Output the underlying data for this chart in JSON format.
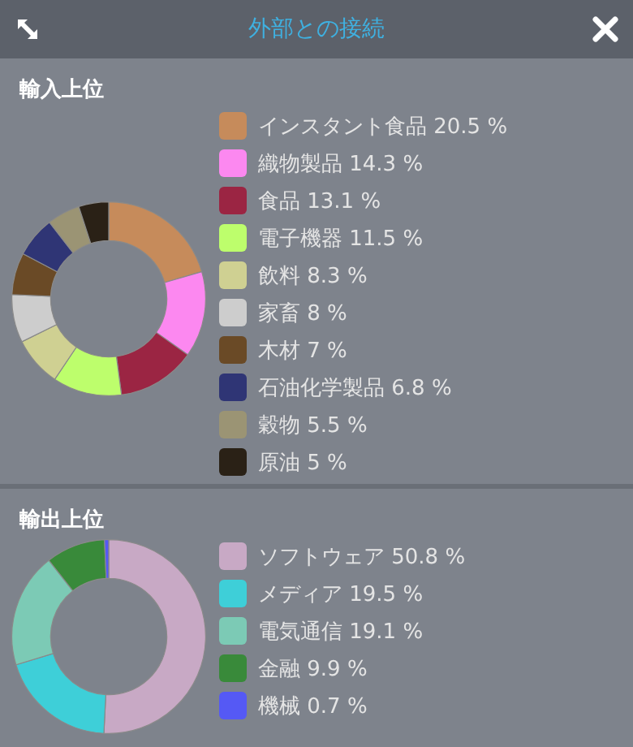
{
  "chart_data": [
    {
      "type": "other",
      "title": "外部との接続"
    },
    {
      "type": "donut",
      "title": "輸入上位",
      "legend": "right",
      "categories": [
        "インスタント食品",
        "織物製品",
        "食品",
        "電子機器",
        "飲料",
        "家畜",
        "木材",
        "石油化学製品",
        "穀物",
        "原油"
      ],
      "values": [
        20.5,
        14.3,
        13.1,
        11.5,
        8.3,
        8,
        7,
        6.8,
        5.5,
        5
      ],
      "value_labels": [
        "20.5 %",
        "14.3 %",
        "13.1 %",
        "11.5 %",
        "8.3 %",
        "8 %",
        "7 %",
        "6.8 %",
        "5.5 %",
        "5 %"
      ],
      "colors": [
        "#c68b5b",
        "#fc88f0",
        "#9b2543",
        "#bdfe6c",
        "#cfd092",
        "#cdcdcd",
        "#6a4a26",
        "#2f3575",
        "#9b9474",
        "#2a2116"
      ]
    },
    {
      "type": "donut",
      "title": "輸出上位",
      "legend": "right",
      "categories": [
        "ソフトウェア",
        "メディア",
        "電気通信",
        "金融",
        "機械"
      ],
      "values": [
        50.8,
        19.5,
        19.1,
        9.9,
        0.7
      ],
      "value_labels": [
        "50.8 %",
        "19.5 %",
        "19.1 %",
        "9.9 %",
        "0.7 %"
      ],
      "colors": [
        "#c8a9c5",
        "#3ecfd8",
        "#7ccab5",
        "#398a3a",
        "#5559f5"
      ]
    }
  ]
}
